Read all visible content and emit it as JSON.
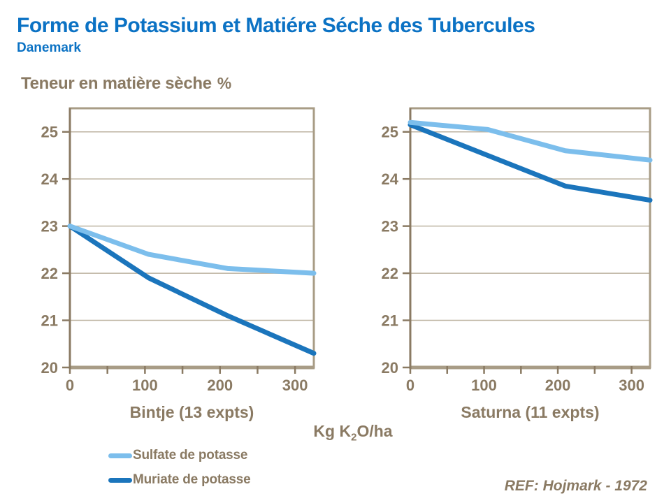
{
  "header": {
    "title": "Forme de Potassium et Matiére Séche des Tubercules",
    "subtitle": "Danemark"
  },
  "y_axis_title": {
    "text": "Teneur en matière sèche",
    "percent": "%"
  },
  "x_axis_unit": {
    "pre": "Kg K",
    "sub": "2",
    "post": "O/ha"
  },
  "legend": {
    "items": [
      {
        "label": "Sulfate de potasse",
        "color": "#7CBEEC"
      },
      {
        "label": "Muriate de potasse",
        "color": "#1B75BC"
      }
    ]
  },
  "footer": {
    "ref": "REF: Hojmark - 1972"
  },
  "colors": {
    "title_blue": "#0B72C4",
    "brown_text": "#8A7A63",
    "grid": "#BDB3A0",
    "border": "#A89C86",
    "axis_dark": "#8A7A63",
    "sulfate": "#7CBEEC",
    "muriate": "#1B75BC"
  },
  "chart_data": [
    {
      "type": "line",
      "title": "Bintje (13 expts)",
      "xlabel": "Kg K2O/ha",
      "ylabel": "Teneur en matière sèche %",
      "xlim": [
        0,
        325
      ],
      "ylim": [
        20,
        25.5
      ],
      "x": [
        0,
        105,
        210,
        325
      ],
      "series": [
        {
          "name": "Muriate de potasse",
          "color": "#1B75BC",
          "values": [
            23.0,
            21.9,
            21.1,
            20.3
          ]
        },
        {
          "name": "Sulfate de potasse",
          "color": "#7CBEEC",
          "values": [
            23.0,
            22.4,
            22.1,
            22.0
          ]
        }
      ],
      "y_ticks": [
        20,
        21,
        22,
        23,
        24,
        25
      ],
      "x_ticks_labeled": [
        0,
        100,
        200,
        300
      ],
      "x_ticks_minor": [
        0,
        50,
        100,
        150,
        200,
        250,
        300
      ],
      "grid": true,
      "legend_position": "below-left"
    },
    {
      "type": "line",
      "title": "Saturna (11 expts)",
      "xlabel": "Kg K2O/ha",
      "ylabel": "Teneur en matière sèche %",
      "xlim": [
        0,
        325
      ],
      "ylim": [
        20,
        25.5
      ],
      "x": [
        0,
        105,
        210,
        325
      ],
      "series": [
        {
          "name": "Muriate de potasse",
          "color": "#1B75BC",
          "values": [
            25.15,
            24.5,
            23.85,
            23.55
          ]
        },
        {
          "name": "Sulfate de potasse",
          "color": "#7CBEEC",
          "values": [
            25.2,
            25.05,
            24.6,
            24.4
          ]
        }
      ],
      "y_ticks": [
        20,
        21,
        22,
        23,
        24,
        25
      ],
      "x_ticks_labeled": [
        0,
        100,
        200,
        300
      ],
      "x_ticks_minor": [
        0,
        50,
        100,
        150,
        200,
        250,
        300
      ],
      "grid": true,
      "legend_position": "below-left"
    }
  ]
}
